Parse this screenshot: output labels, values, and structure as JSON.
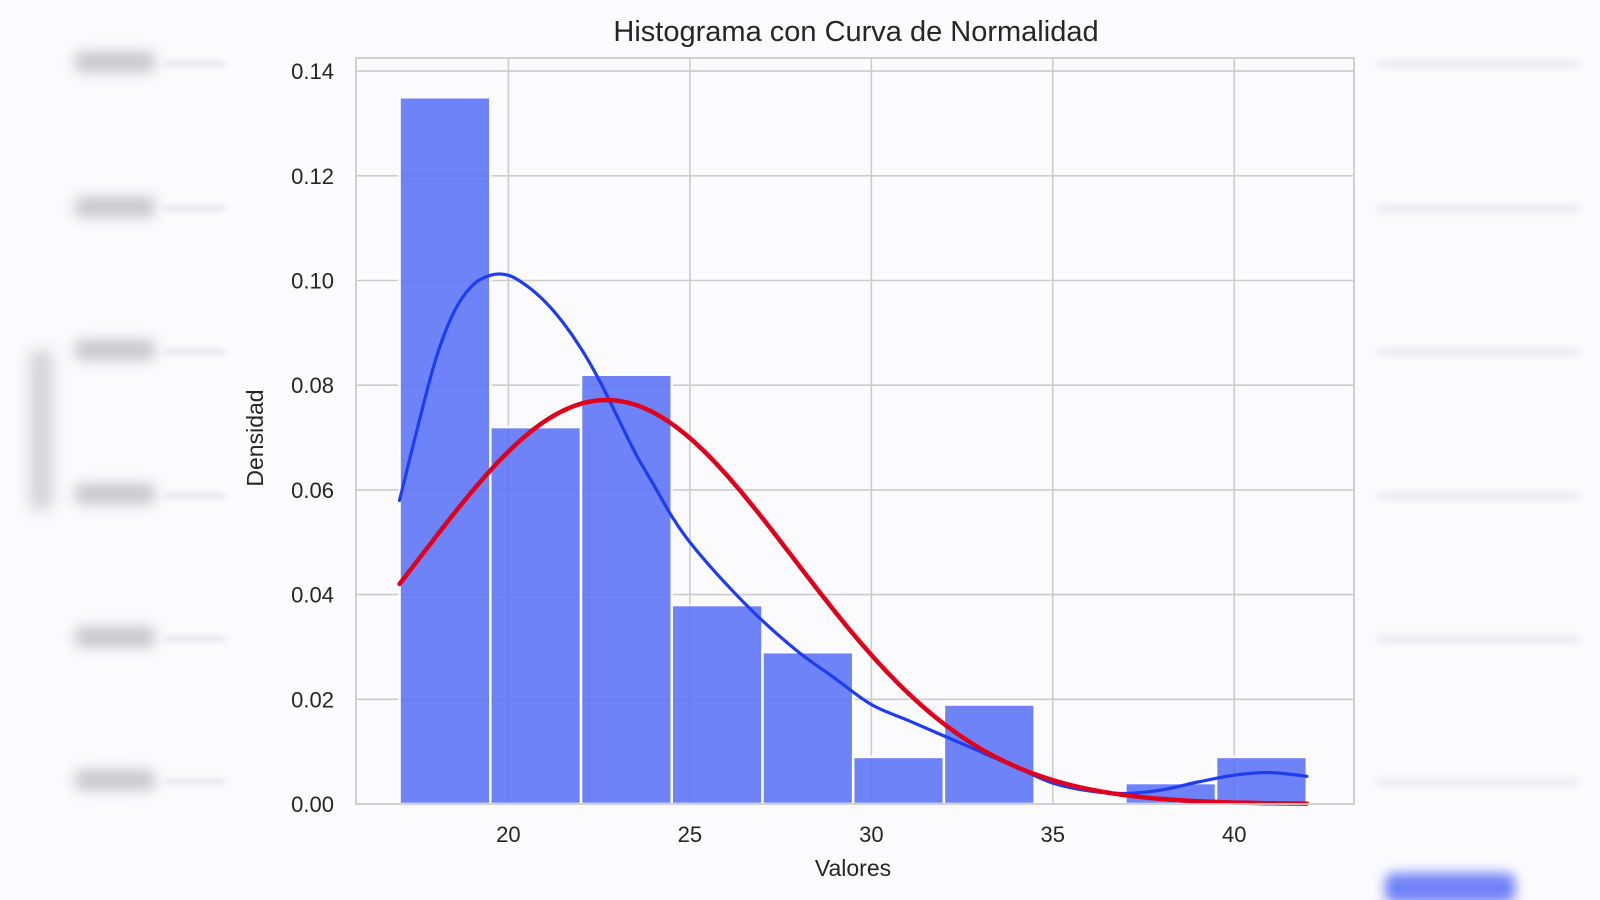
{
  "chart_data": {
    "type": "bar",
    "title": "Histograma con Curva de Normalidad",
    "xlabel": "Valores",
    "ylabel": "Densidad",
    "xlim": [
      15.8,
      43.3
    ],
    "ylim": [
      0,
      0.1425
    ],
    "xticks": [
      20,
      25,
      30,
      35,
      40
    ],
    "xtick_labels": [
      "20",
      "25",
      "30",
      "35",
      "40"
    ],
    "yticks": [
      0.0,
      0.02,
      0.04,
      0.06,
      0.08,
      0.1,
      0.12,
      0.14
    ],
    "ytick_labels": [
      "0.00",
      "0.02",
      "0.04",
      "0.06",
      "0.08",
      "0.10",
      "0.12",
      "0.14"
    ],
    "grid": true,
    "bins": [
      {
        "start": 17.0,
        "end": 19.5,
        "density": 0.135
      },
      {
        "start": 19.5,
        "end": 22.0,
        "density": 0.072
      },
      {
        "start": 22.0,
        "end": 24.5,
        "density": 0.082
      },
      {
        "start": 24.5,
        "end": 27.0,
        "density": 0.038
      },
      {
        "start": 27.0,
        "end": 29.5,
        "density": 0.029
      },
      {
        "start": 29.5,
        "end": 32.0,
        "density": 0.009
      },
      {
        "start": 32.0,
        "end": 34.5,
        "density": 0.019
      },
      {
        "start": 34.5,
        "end": 37.0,
        "density": 0.0
      },
      {
        "start": 37.0,
        "end": 39.5,
        "density": 0.004
      },
      {
        "start": 39.5,
        "end": 42.0,
        "density": 0.009
      }
    ],
    "series": [
      {
        "kind": "kde",
        "color": "#1f3cf0",
        "x": [
          17.0,
          17.5,
          18.0,
          18.5,
          19.0,
          19.5,
          20.0,
          20.5,
          21.0,
          21.5,
          22.0,
          22.5,
          23.0,
          23.5,
          24.0,
          24.5,
          25.0,
          26.0,
          27.0,
          28.0,
          29.0,
          30.0,
          31.0,
          32.0,
          33.0,
          34.0,
          35.0,
          36.0,
          37.0,
          38.0,
          39.0,
          40.0,
          41.0,
          42.0
        ],
        "y": [
          0.058,
          0.072,
          0.085,
          0.094,
          0.099,
          0.101,
          0.101,
          0.099,
          0.096,
          0.092,
          0.087,
          0.081,
          0.074,
          0.067,
          0.061,
          0.055,
          0.05,
          0.042,
          0.035,
          0.029,
          0.024,
          0.019,
          0.016,
          0.013,
          0.01,
          0.007,
          0.004,
          0.0025,
          0.002,
          0.0027,
          0.0042,
          0.0055,
          0.006,
          0.0053
        ]
      },
      {
        "kind": "normal",
        "color": "#e0001b",
        "mean": 22.7,
        "std": 5.17
      }
    ]
  },
  "background_colors": {
    "page": "#fbfbfe",
    "plot": "#fbfbfe",
    "grid": "#cccccc",
    "bar_fill": "#5a72f7"
  }
}
